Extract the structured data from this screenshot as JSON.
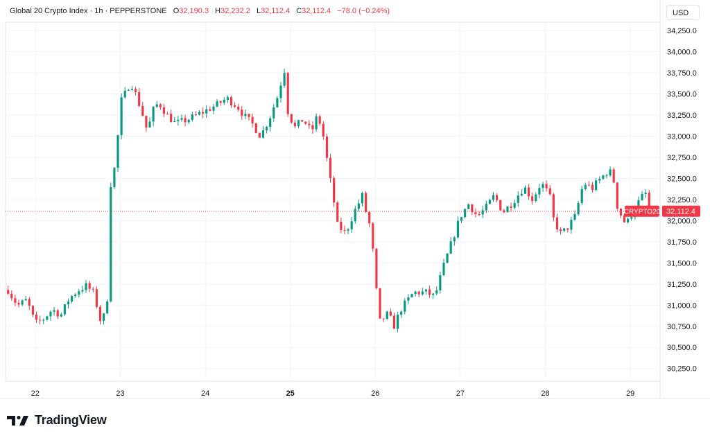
{
  "legend": {
    "symbol": "Global 20 Crypto Index · 1h · PEPPERSTONE",
    "o_label": "O",
    "o_value": "32,190.3",
    "h_label": "H",
    "h_value": "32,232.2",
    "l_label": "L",
    "l_value": "32,112.4",
    "c_label": "C",
    "c_value": "32,112.4",
    "change": "−78.0 (−0.24%)"
  },
  "currency": "USD",
  "footer": {
    "brand": "TradingView"
  },
  "colors": {
    "up": "#089981",
    "down": "#f23645",
    "grid": "#f0f3fa",
    "axis_text": "#131722"
  },
  "chart_data": {
    "type": "candlestick",
    "title": "Global 20 Crypto Index · 1h · PEPPERSTONE",
    "ylim": [
      30100,
      34350
    ],
    "y_ticks": [
      30250,
      30500,
      30750,
      31000,
      31250,
      31500,
      31750,
      32000,
      32250,
      32500,
      32750,
      33000,
      33250,
      33500,
      33750,
      34000,
      34250
    ],
    "y_tick_labels": [
      "30,250.0",
      "30,500.0",
      "30,750.0",
      "31,000.0",
      "31,250.0",
      "31,500.0",
      "31,750.0",
      "32,000.0",
      "32,250.0",
      "32,500.0",
      "32,750.0",
      "33,000.0",
      "33,250.0",
      "33,500.0",
      "33,750.0",
      "34,000.0",
      "34,250.0"
    ],
    "xlim": [
      21.65,
      29.35
    ],
    "x_ticks": [
      22,
      23,
      24,
      25,
      26,
      27,
      28,
      29
    ],
    "x_tick_labels": [
      "22",
      "23",
      "24",
      "25",
      "26",
      "27",
      "28",
      "29"
    ],
    "x_bold_tick": "25",
    "last_price": 32112.4,
    "last_price_label": "32,112.4",
    "series_label": "CRYPTO20",
    "anchors": [
      [
        21.68,
        31180
      ],
      [
        21.75,
        31060
      ],
      [
        21.8,
        31000
      ],
      [
        21.9,
        31060
      ],
      [
        22.0,
        30780
      ],
      [
        22.1,
        30840
      ],
      [
        22.2,
        30950
      ],
      [
        22.3,
        30880
      ],
      [
        22.4,
        31080
      ],
      [
        22.5,
        31170
      ],
      [
        22.6,
        31230
      ],
      [
        22.68,
        31150
      ],
      [
        22.75,
        30900
      ],
      [
        22.78,
        30740
      ],
      [
        22.85,
        31100
      ],
      [
        22.88,
        32400
      ],
      [
        22.95,
        32700
      ],
      [
        23.0,
        33400
      ],
      [
        23.08,
        33550
      ],
      [
        23.12,
        33650
      ],
      [
        23.18,
        33500
      ],
      [
        23.25,
        33300
      ],
      [
        23.32,
        33050
      ],
      [
        23.38,
        33300
      ],
      [
        23.45,
        33400
      ],
      [
        23.55,
        33250
      ],
      [
        23.65,
        33150
      ],
      [
        23.8,
        33200
      ],
      [
        24.0,
        33300
      ],
      [
        24.15,
        33380
      ],
      [
        24.25,
        33450
      ],
      [
        24.38,
        33350
      ],
      [
        24.45,
        33250
      ],
      [
        24.55,
        33150
      ],
      [
        24.65,
        33000
      ],
      [
        24.75,
        33200
      ],
      [
        24.88,
        33550
      ],
      [
        24.92,
        33900
      ],
      [
        24.97,
        33300
      ],
      [
        25.05,
        33100
      ],
      [
        25.15,
        33200
      ],
      [
        25.25,
        33050
      ],
      [
        25.32,
        33250
      ],
      [
        25.38,
        33050
      ],
      [
        25.45,
        32600
      ],
      [
        25.52,
        32180
      ],
      [
        25.55,
        31950
      ],
      [
        25.65,
        31850
      ],
      [
        25.75,
        32100
      ],
      [
        25.85,
        32300
      ],
      [
        25.9,
        32050
      ],
      [
        25.95,
        31900
      ],
      [
        26.0,
        31300
      ],
      [
        26.05,
        30800
      ],
      [
        26.15,
        30900
      ],
      [
        26.22,
        30750
      ],
      [
        26.3,
        30950
      ],
      [
        26.45,
        31150
      ],
      [
        26.6,
        31150
      ],
      [
        26.7,
        31100
      ],
      [
        26.8,
        31450
      ],
      [
        26.9,
        31750
      ],
      [
        27.0,
        32050
      ],
      [
        27.1,
        32200
      ],
      [
        27.2,
        32050
      ],
      [
        27.3,
        32150
      ],
      [
        27.4,
        32300
      ],
      [
        27.5,
        32100
      ],
      [
        27.6,
        32200
      ],
      [
        27.75,
        32400
      ],
      [
        27.85,
        32250
      ],
      [
        27.95,
        32450
      ],
      [
        28.05,
        32300
      ],
      [
        28.1,
        32000
      ],
      [
        28.18,
        31850
      ],
      [
        28.25,
        31900
      ],
      [
        28.35,
        32050
      ],
      [
        28.45,
        32450
      ],
      [
        28.55,
        32380
      ],
      [
        28.65,
        32500
      ],
      [
        28.75,
        32600
      ],
      [
        28.8,
        32500
      ],
      [
        28.85,
        32150
      ],
      [
        28.95,
        31950
      ],
      [
        29.05,
        32150
      ],
      [
        29.15,
        32300
      ],
      [
        29.22,
        32350
      ],
      [
        29.26,
        32112.4
      ]
    ]
  }
}
